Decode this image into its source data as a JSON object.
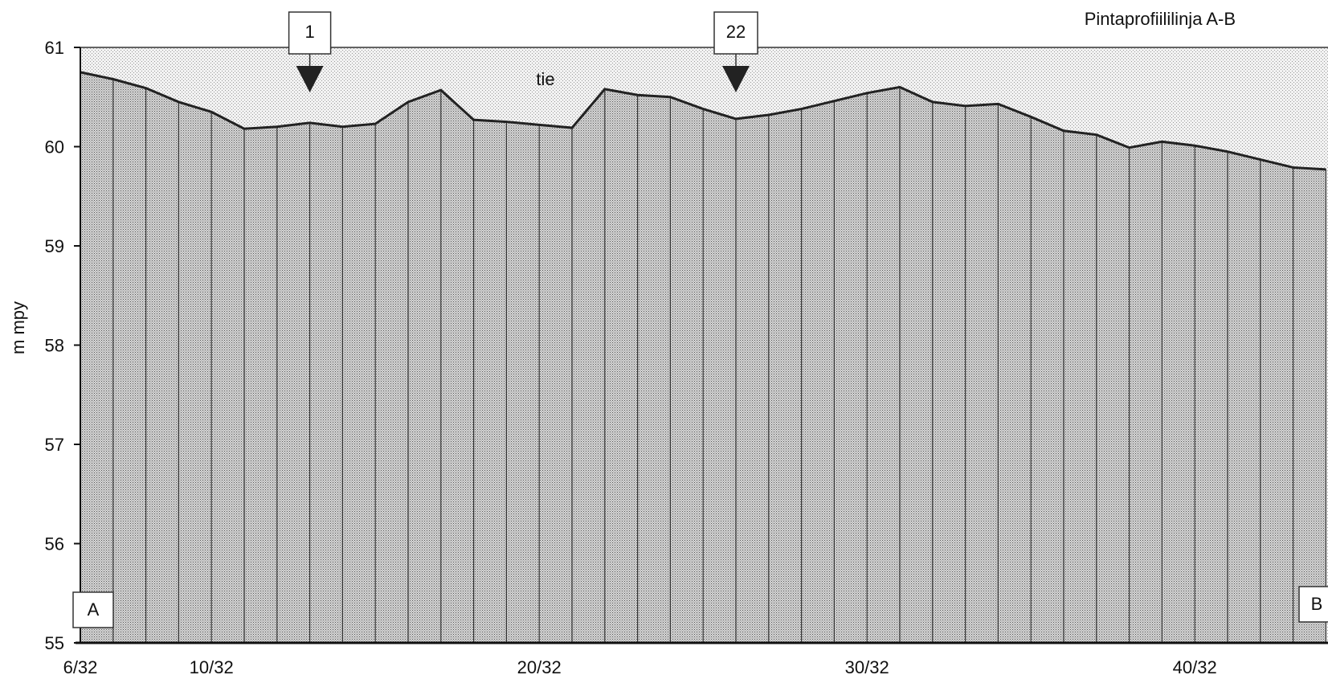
{
  "chart_data": {
    "type": "area",
    "title": "Pintaprofiililinja A-B",
    "ylabel": "m mpy",
    "xlabel": "",
    "ylim": [
      55,
      61
    ],
    "y_ticks": [
      "55",
      "56",
      "57",
      "58",
      "59",
      "60",
      "61"
    ],
    "x_tick_labels": [
      {
        "label": "6/32",
        "index": 0
      },
      {
        "label": "10/32",
        "index": 4
      },
      {
        "label": "20/32",
        "index": 14
      },
      {
        "label": "30/32",
        "index": 24
      },
      {
        "label": "40/32",
        "index": 34
      }
    ],
    "series": [
      {
        "values": [
          60.75,
          60.68,
          60.59,
          60.45,
          60.35,
          60.18,
          60.2,
          60.24,
          60.2,
          60.23,
          60.45,
          60.57,
          60.27,
          60.25,
          60.22,
          60.19,
          60.58,
          60.52,
          60.5,
          60.38,
          60.28,
          60.32,
          60.38,
          60.46,
          60.54,
          60.6,
          60.45,
          60.41,
          60.43,
          60.3,
          60.16,
          60.12,
          59.99,
          60.05,
          60.01,
          59.95,
          59.87,
          59.79,
          59.77
        ]
      }
    ],
    "annotations": {
      "road_label": "tie",
      "start_label": "A",
      "end_label": "B",
      "markers": [
        {
          "label": "1",
          "index": 7
        },
        {
          "label": "22",
          "index": 20
        }
      ]
    },
    "grid": false
  },
  "colors": {
    "road_fill": "#e6e6e6",
    "ground_fill": "#c9c9c9",
    "line": "#222222"
  }
}
